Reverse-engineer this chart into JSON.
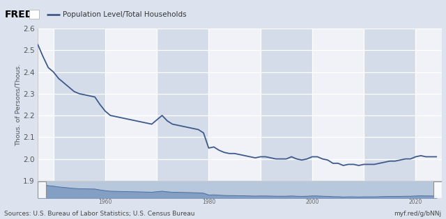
{
  "title": "Population Level/Total Households",
  "ylabel": "Thous. of Persons/Thous.",
  "source_left": "Sources: U.S. Bureau of Labor Statistics; U.S. Census Bureau",
  "source_right": "myf.red/g/bNNj",
  "line_color": "#3d5a8a",
  "bg_color": "#dce3ef",
  "plot_bg_color": "#f0f2f7",
  "shaded_bg_color": "#d4dbe9",
  "nav_bg_color": "#b8c8dc",
  "nav_fill_color": "#8fa8cc",
  "ylim": [
    1.9,
    2.6
  ],
  "yticks": [
    1.9,
    2.0,
    2.1,
    2.2,
    2.3,
    2.4,
    2.5,
    2.6
  ],
  "xlim": [
    1947,
    2025
  ],
  "xticks": [
    1950,
    1960,
    1970,
    1980,
    1990,
    2000,
    2010,
    2020
  ],
  "data_x": [
    1947,
    1948,
    1949,
    1950,
    1951,
    1952,
    1953,
    1954,
    1955,
    1956,
    1957,
    1958,
    1959,
    1960,
    1961,
    1962,
    1963,
    1964,
    1965,
    1966,
    1967,
    1968,
    1969,
    1970,
    1971,
    1972,
    1973,
    1974,
    1975,
    1976,
    1977,
    1978,
    1979,
    1980,
    1981,
    1982,
    1983,
    1984,
    1985,
    1986,
    1987,
    1988,
    1989,
    1990,
    1991,
    1992,
    1993,
    1994,
    1995,
    1996,
    1997,
    1998,
    1999,
    2000,
    2001,
    2002,
    2003,
    2004,
    2005,
    2006,
    2007,
    2008,
    2009,
    2010,
    2011,
    2012,
    2013,
    2014,
    2015,
    2016,
    2017,
    2018,
    2019,
    2020,
    2021,
    2022,
    2023,
    2024
  ],
  "data_y": [
    2.525,
    2.47,
    2.42,
    2.4,
    2.37,
    2.35,
    2.33,
    2.31,
    2.3,
    2.295,
    2.29,
    2.285,
    2.25,
    2.22,
    2.2,
    2.195,
    2.19,
    2.185,
    2.18,
    2.175,
    2.17,
    2.165,
    2.16,
    2.18,
    2.2,
    2.175,
    2.16,
    2.155,
    2.15,
    2.145,
    2.14,
    2.135,
    2.12,
    2.05,
    2.055,
    2.04,
    2.03,
    2.025,
    2.025,
    2.02,
    2.015,
    2.01,
    2.005,
    2.01,
    2.01,
    2.005,
    2.0,
    2.0,
    2.0,
    2.01,
    2.0,
    1.995,
    2.0,
    2.01,
    2.01,
    2.0,
    1.995,
    1.98,
    1.98,
    1.97,
    1.975,
    1.975,
    1.97,
    1.975,
    1.975,
    1.975,
    1.98,
    1.985,
    1.99,
    1.99,
    1.995,
    2.0,
    2.0,
    2.01,
    2.015,
    2.01,
    2.01,
    2.01
  ]
}
